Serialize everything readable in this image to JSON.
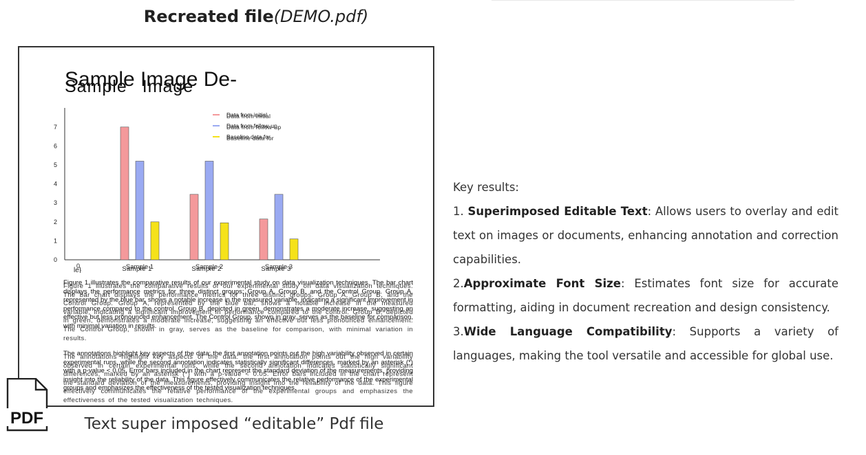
{
  "header": {
    "title_bold": "Recreated file",
    "title_italic": "(DEMO.pdf)"
  },
  "document": {
    "title": "Sample Image De-",
    "title_ghost": "Sample  Image",
    "para1": "Figure 1 illustrates the comparative results of our experimental study on data visualization techniques. The bar chart displays the performance metrics for three distinct groups: Group A, Group B, and the Control Group. Group A, represented by the blue bar, shows a notable increase in the measured variable, indicating a significant improvement in performance compared to the control. Group B, depicted in green, demonstrates a moderate increase, suggesting an effective but less pronounced enhancement. The Control Group, shown in gray, serves as the baseline for comparison, with minimal variation in results.",
    "para1_ghost": "Figure 1 illustrates the comparative results of our experimental study on data visualization techniques. The bar chart displays the performance metrics for three distinct groups: Group A, Group B, and the Control Group. Group A, represented by the blue bar, shows a notable increase in the measured variable, indicating a significant improvement in performance compared to the control. Group B, depicted in green, demonstrates a moderate increase, suggesting an effective but less pronounced enhancement. The Control Group, shown in gray, serves as the baseline for comparison, with minimal variation in results.",
    "para2": "The annotations highlight key aspects of the data: the first annotation points out the high variability observed in certain experimental runs, while the second annotation indicates statistically significant differences, marked by an asterisk (*) with a p-value < 0.05. Error bars included in the chart represent the standard deviation of the measurements, providing insight into the reliability of the data. This figure effectively communicates the relative performance of the experimental groups and emphasizes the effectiveness of the tested visualization techniques.",
    "para2_ghost": "The annotations highlight key aspects of the data: the first annotation points out the high variability observed in certain experimental runs, while the second annotation indicates statistically significant differences, marked by an asterisk (*) with a p-value < 0.05. Error bars included in the chart represent the standard deviation of the measurements, providing insight into the reliability of the data. This figure effectively communicates the relative performance of the experimental groups and emphasizes the effectiveness of the tested visualization techniques."
  },
  "chart_data": {
    "type": "bar",
    "categories": [
      "Sample 1",
      "Sample 2",
      "Sample 3"
    ],
    "series": [
      {
        "name": "Data from initial",
        "values": [
          7.0,
          3.45,
          2.15
        ],
        "color": "#f4999b"
      },
      {
        "name": "Data from follow-up",
        "values": [
          5.2,
          5.2,
          3.45
        ],
        "color": "#9aaaf2"
      },
      {
        "name": "Baseline data for",
        "values": [
          2.0,
          1.95,
          1.1
        ],
        "color": "#f5e21a"
      }
    ],
    "yticks": [
      0,
      1,
      2,
      3,
      4,
      5,
      6,
      7
    ],
    "ylim": [
      0,
      8
    ],
    "x_origin_label": "0",
    "x_stray_label": "le}",
    "legend_position": "top-center",
    "grid": false
  },
  "pdf_icon_label": "PDF",
  "caption": "Text super imposed “editable” Pdf file",
  "results": {
    "heading": "Key results:",
    "items": [
      {
        "prefix": "1. ",
        "title": "Superimposed Editable Text",
        "text": ": Allows users to overlay and edit text on images or documents, enhancing annotation and correction capabilities."
      },
      {
        "prefix": "2.",
        "title": "Approximate Font Size",
        "text": ": Estimates font size for accurate formatting, aiding in document recreation and design consistency."
      },
      {
        "prefix": "3.",
        "title": "Wide Language Compatibility",
        "text": ": Supports a variety of languages, making the tool versatile and accessible for global use."
      }
    ]
  }
}
